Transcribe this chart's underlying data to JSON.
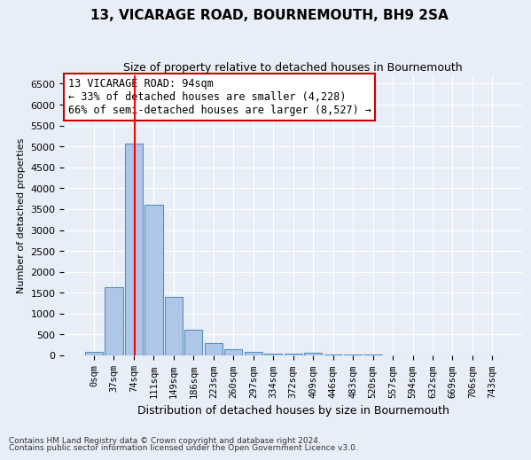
{
  "title": "13, VICARAGE ROAD, BOURNEMOUTH, BH9 2SA",
  "subtitle": "Size of property relative to detached houses in Bournemouth",
  "xlabel": "Distribution of detached houses by size in Bournemouth",
  "ylabel": "Number of detached properties",
  "footer1": "Contains HM Land Registry data © Crown copyright and database right 2024.",
  "footer2": "Contains public sector information licensed under the Open Government Licence v3.0.",
  "bin_labels": [
    "0sqm",
    "37sqm",
    "74sqm",
    "111sqm",
    "149sqm",
    "186sqm",
    "223sqm",
    "260sqm",
    "297sqm",
    "334sqm",
    "372sqm",
    "409sqm",
    "446sqm",
    "483sqm",
    "520sqm",
    "557sqm",
    "594sqm",
    "632sqm",
    "669sqm",
    "706sqm",
    "743sqm"
  ],
  "bar_values": [
    75,
    1625,
    5075,
    3600,
    1400,
    610,
    300,
    140,
    80,
    50,
    40,
    60,
    30,
    15,
    10,
    8,
    5,
    4,
    3,
    3,
    3
  ],
  "bar_color": "#aec6e8",
  "bar_edge_color": "#5a8fc0",
  "background_color": "#e8eef7",
  "grid_color": "#ffffff",
  "annotation_text": "13 VICARAGE ROAD: 94sqm\n← 33% of detached houses are smaller (4,228)\n66% of semi-detached houses are larger (8,527) →",
  "annotation_box_color": "#ffffff",
  "annotation_box_edge": "#cc0000",
  "ylim": [
    0,
    6700
  ],
  "yticks": [
    0,
    500,
    1000,
    1500,
    2000,
    2500,
    3000,
    3500,
    4000,
    4500,
    5000,
    5500,
    6000,
    6500
  ]
}
